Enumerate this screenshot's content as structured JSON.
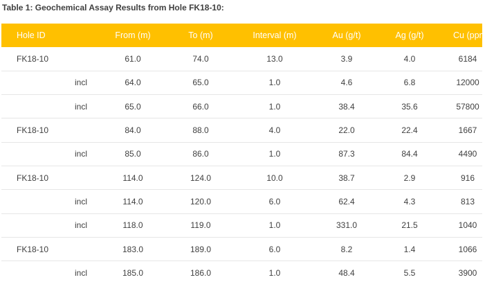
{
  "caption": "Table 1: Geochemical Assay Results from Hole FK18-10:",
  "colors": {
    "header_bg": "#ffc000",
    "header_text": "#ffffff",
    "row_divider": "#e6e6e6"
  },
  "columns": [
    "Hole ID",
    "",
    "From (m)",
    "To (m)",
    "Interval (m)",
    "Au (g/t)",
    "Ag (g/t)",
    "Cu (ppm)"
  ],
  "rows": [
    {
      "hole": "FK18-10",
      "qual": "",
      "from": "61.0",
      "to": "74.0",
      "interval": "13.0",
      "au": "3.9",
      "ag": "4.0",
      "cu": "6184"
    },
    {
      "hole": "",
      "qual": "incl",
      "from": "64.0",
      "to": "65.0",
      "interval": "1.0",
      "au": "4.6",
      "ag": "6.8",
      "cu": "12000"
    },
    {
      "hole": "",
      "qual": "incl",
      "from": "65.0",
      "to": "66.0",
      "interval": "1.0",
      "au": "38.4",
      "ag": "35.6",
      "cu": "57800"
    },
    {
      "hole": "FK18-10",
      "qual": "",
      "from": "84.0",
      "to": "88.0",
      "interval": "4.0",
      "au": "22.0",
      "ag": "22.4",
      "cu": "1667"
    },
    {
      "hole": "",
      "qual": "incl",
      "from": "85.0",
      "to": "86.0",
      "interval": "1.0",
      "au": "87.3",
      "ag": "84.4",
      "cu": "4490"
    },
    {
      "hole": "FK18-10",
      "qual": "",
      "from": "114.0",
      "to": "124.0",
      "interval": "10.0",
      "au": "38.7",
      "ag": "2.9",
      "cu": "916"
    },
    {
      "hole": "",
      "qual": "incl",
      "from": "114.0",
      "to": "120.0",
      "interval": "6.0",
      "au": "62.4",
      "ag": "4.3",
      "cu": "813"
    },
    {
      "hole": "",
      "qual": "incl",
      "from": "118.0",
      "to": "119.0",
      "interval": "1.0",
      "au": "331.0",
      "ag": "21.5",
      "cu": "1040"
    },
    {
      "hole": "FK18-10",
      "qual": "",
      "from": "183.0",
      "to": "189.0",
      "interval": "6.0",
      "au": "8.2",
      "ag": "1.4",
      "cu": "1066"
    },
    {
      "hole": "",
      "qual": "incl",
      "from": "185.0",
      "to": "186.0",
      "interval": "1.0",
      "au": "48.4",
      "ag": "5.5",
      "cu": "3900"
    }
  ]
}
